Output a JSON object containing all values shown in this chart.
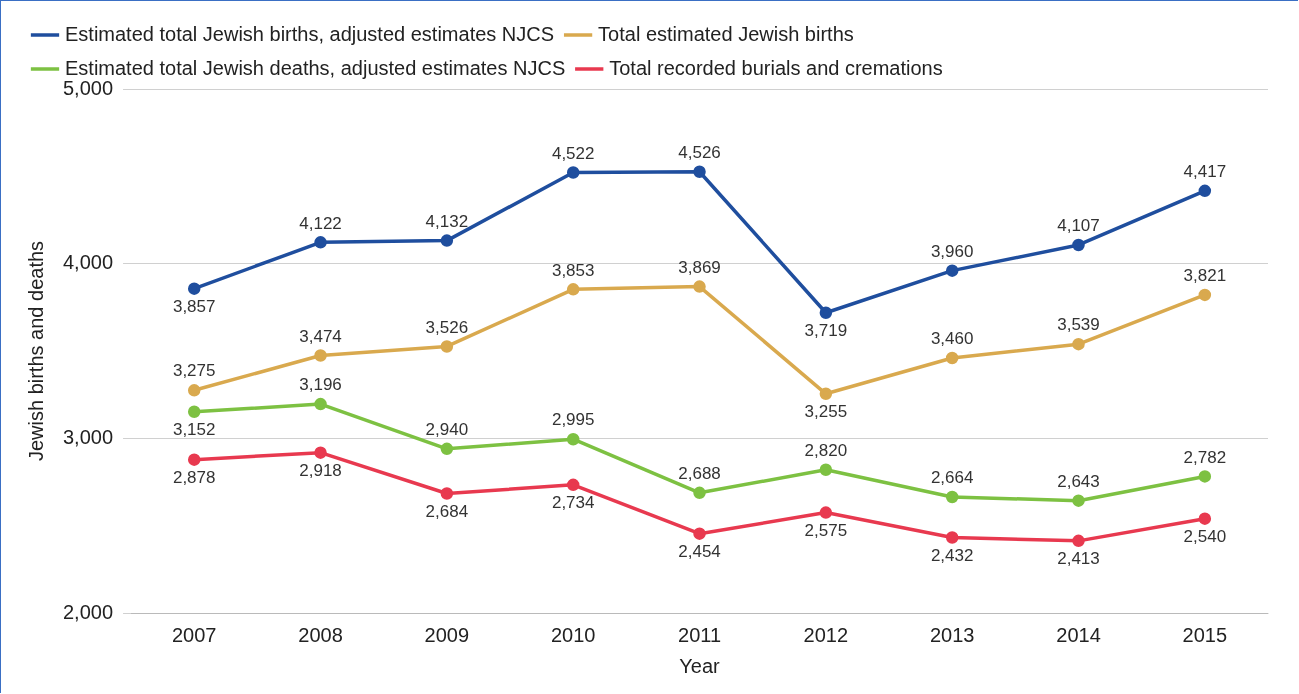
{
  "chart_data": {
    "type": "line",
    "xlabel": "Year",
    "ylabel": "Jewish births and deaths",
    "categories": [
      "2007",
      "2008",
      "2009",
      "2010",
      "2011",
      "2012",
      "2013",
      "2014",
      "2015"
    ],
    "series": [
      {
        "name": "Estimated total Jewish births, adjusted estimates NJCS",
        "color": "#1f4e9e",
        "values": [
          3857,
          4122,
          4132,
          4522,
          4526,
          3719,
          3960,
          4107,
          4417
        ],
        "value_labels": [
          "3,857",
          "4,122",
          "4,132",
          "4,522",
          "4,526",
          "3,719",
          "3,960",
          "4,107",
          "4,417"
        ]
      },
      {
        "name": "Total estimated Jewish births",
        "color": "#d9a94e",
        "values": [
          3275,
          3474,
          3526,
          3853,
          3869,
          3255,
          3460,
          3539,
          3821
        ],
        "value_labels": [
          "3,275",
          "3,474",
          "3,526",
          "3,853",
          "3,869",
          "3,255",
          "3,460",
          "3,539",
          "3,821"
        ]
      },
      {
        "name": "Estimated total Jewish deaths, adjusted estimates NJCS",
        "color": "#7dc142",
        "values": [
          3152,
          3196,
          2940,
          2995,
          2688,
          2820,
          2664,
          2643,
          2782
        ],
        "value_labels": [
          "3,152",
          "3,196",
          "2,940",
          "2,995",
          "2,688",
          "2,820",
          "2,664",
          "2,643",
          "2,782"
        ]
      },
      {
        "name": "Total recorded burials and cremations",
        "color": "#e8394f",
        "values": [
          2878,
          2918,
          2684,
          2734,
          2454,
          2575,
          2432,
          2413,
          2540
        ],
        "value_labels": [
          "2,878",
          "2,918",
          "2,684",
          "2,734",
          "2,454",
          "2,575",
          "2,432",
          "2,413",
          "2,540"
        ]
      }
    ],
    "ylim": [
      2000,
      5000
    ],
    "yticks": [
      {
        "value": 2000,
        "label": "2,000"
      },
      {
        "value": 3000,
        "label": "3,000"
      },
      {
        "value": 4000,
        "label": "4,000"
      },
      {
        "value": 5000,
        "label": "5,000"
      }
    ],
    "grid": "y",
    "legend": "top",
    "marker": "circle"
  }
}
